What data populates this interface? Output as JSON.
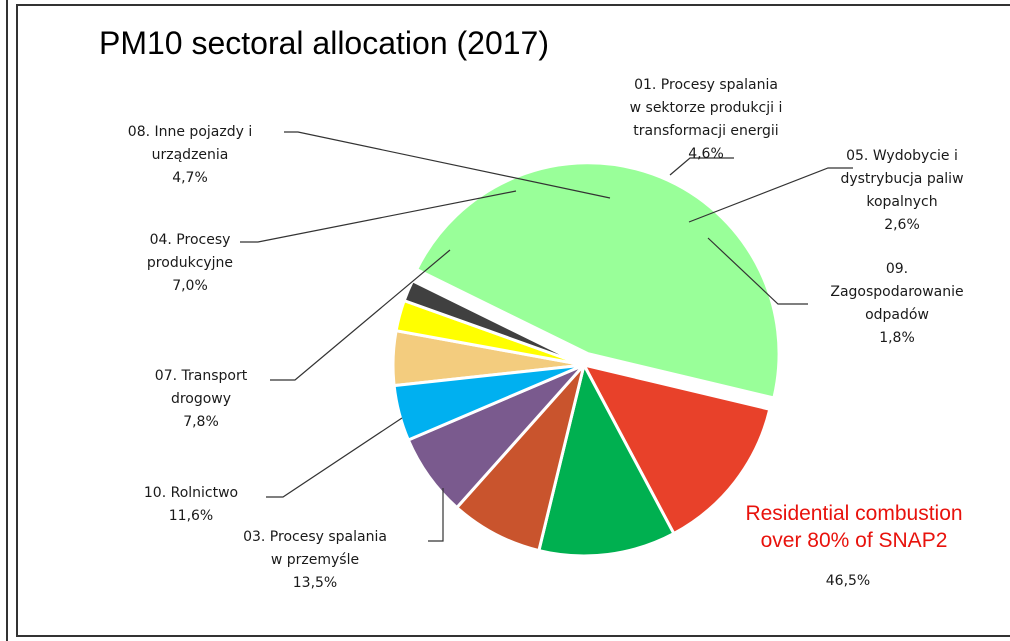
{
  "chart_data": {
    "type": "pie",
    "title": "PM10 sectoral allocation (2017)",
    "slices": [
      {
        "label_lines": [
          "01. Procesy spalania",
          "w sektorze produkcji i",
          "transformacji energii"
        ],
        "value_label": "4,6%",
        "value": 4.6,
        "color": "#F3CC7E"
      },
      {
        "label_lines": [
          "05. Wydobycie i",
          "dystrybucja paliw",
          "kopalnych"
        ],
        "value_label": "2,6%",
        "value": 2.6,
        "color": "#FFFF00"
      },
      {
        "label_lines": [
          "09.",
          "Zagospodarowanie",
          "odpadów"
        ],
        "value_label": "1,8%",
        "value": 1.8,
        "color": "#404040"
      },
      {
        "label_lines": [],
        "value_label": "46,5%",
        "value": 46.5,
        "color": "#99FF99",
        "exploded": true
      },
      {
        "label_lines": [
          "03. Procesy spalania",
          "w przemyśle"
        ],
        "value_label": "13,5%",
        "value": 13.5,
        "color": "#E8412A"
      },
      {
        "label_lines": [
          "10. Rolnictwo"
        ],
        "value_label": "11,6%",
        "value": 11.6,
        "color": "#00B050"
      },
      {
        "label_lines": [
          "07. Transport",
          "drogowy"
        ],
        "value_label": "7,8%",
        "value": 7.8,
        "color": "#C9542D"
      },
      {
        "label_lines": [
          "04. Procesy",
          "produkcyjne"
        ],
        "value_label": "7,0%",
        "value": 7.0,
        "color": "#7A5A8E"
      },
      {
        "label_lines": [
          "08. Inne pojazdy i",
          "urządzenia"
        ],
        "value_label": "4,7%",
        "value": 4.7,
        "color": "#00B0F0"
      }
    ],
    "annotation": [
      "Residential combustion",
      "over 80% of SNAP2"
    ],
    "annotation_color": "#E8120C"
  }
}
